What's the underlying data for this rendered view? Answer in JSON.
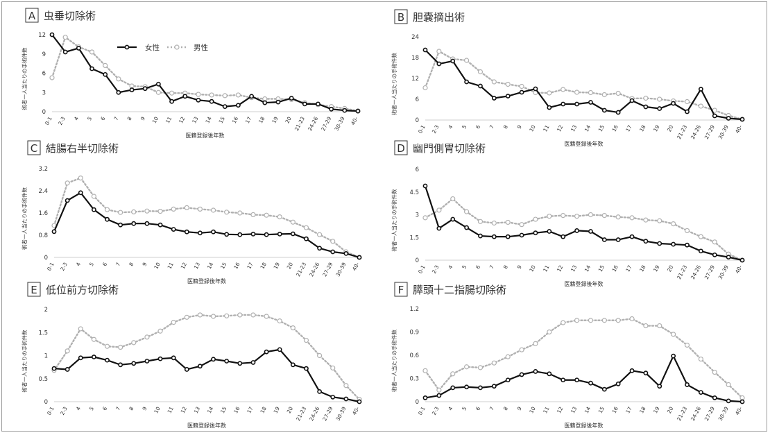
{
  "colors": {
    "female": "#111111",
    "male": "#b0b0b0",
    "axis": "#cfcfcf",
    "text": "#333333"
  },
  "legend": {
    "female": "女性",
    "male": "男性"
  },
  "chart_data": [
    {
      "type": "line",
      "letter": "A",
      "title": "虫垂切除術",
      "xlabel": "医籍登録後年数",
      "ylabel": "術者一人当たりの手術件数",
      "categories": [
        "0-1",
        "2-3",
        "4",
        "5",
        "6",
        "7",
        "8",
        "9",
        "10",
        "11",
        "12",
        "13",
        "14",
        "15",
        "16",
        "17",
        "18",
        "19",
        "20",
        "21-23",
        "24-26",
        "27-29",
        "30-39",
        "40-"
      ],
      "yticks": [
        "0",
        "3",
        "6",
        "9",
        "12"
      ],
      "ylim": [
        0,
        12
      ],
      "series": [
        {
          "name": "女性",
          "values": [
            12.0,
            9.3,
            9.9,
            6.7,
            5.8,
            3.0,
            3.4,
            3.6,
            4.3,
            1.6,
            2.4,
            1.8,
            1.6,
            0.8,
            1.0,
            2.4,
            1.4,
            1.5,
            2.1,
            1.2,
            1.2,
            0.4,
            0.2,
            0.1
          ]
        },
        {
          "name": "男性",
          "values": [
            5.3,
            11.6,
            10.1,
            9.3,
            7.2,
            5.1,
            4.0,
            3.9,
            3.0,
            2.9,
            2.9,
            2.7,
            2.6,
            2.5,
            2.6,
            2.2,
            2.0,
            2.0,
            1.9,
            1.4,
            1.1,
            0.8,
            0.5,
            0.1
          ]
        }
      ]
    },
    {
      "type": "line",
      "letter": "B",
      "title": "胆嚢摘出術",
      "xlabel": "医籍登録後年数",
      "ylabel": "術者一人当たりの手術件数",
      "categories": [
        "0-1",
        "2-3",
        "4",
        "5",
        "6",
        "7",
        "8",
        "9",
        "10",
        "11",
        "12",
        "13",
        "14",
        "15",
        "16",
        "17",
        "18",
        "19",
        "20",
        "21-23",
        "24-26",
        "27-29",
        "30-39",
        "40-"
      ],
      "yticks": [
        "0",
        "6",
        "12",
        "18",
        "24"
      ],
      "ylim": [
        0,
        24
      ],
      "series": [
        {
          "name": "女性",
          "values": [
            20.2,
            16.2,
            17.0,
            11.0,
            9.8,
            6.3,
            6.9,
            8.0,
            9.0,
            3.6,
            4.6,
            4.6,
            5.1,
            2.8,
            2.2,
            5.6,
            3.8,
            3.3,
            4.8,
            2.4,
            8.9,
            1.2,
            0.5,
            0.2
          ]
        },
        {
          "name": "男性",
          "values": [
            9.3,
            19.8,
            17.6,
            17.2,
            13.9,
            11.0,
            10.3,
            9.7,
            7.9,
            7.8,
            8.8,
            8.0,
            7.9,
            7.3,
            7.7,
            6.2,
            6.3,
            6.0,
            5.5,
            5.3,
            4.0,
            2.8,
            1.3,
            0.2
          ]
        }
      ]
    },
    {
      "type": "line",
      "letter": "C",
      "title": "結腸右半切除術",
      "xlabel": "医籍登録後年数",
      "ylabel": "術者一人当たりの手術件数",
      "categories": [
        "0-1",
        "2-3",
        "4",
        "5",
        "6",
        "7",
        "8",
        "9",
        "10",
        "11",
        "12",
        "13",
        "14",
        "15",
        "16",
        "17",
        "18",
        "19",
        "20",
        "21-23",
        "24-26",
        "27-29",
        "30-39",
        "40-"
      ],
      "yticks": [
        "0",
        "0.8",
        "1.6",
        "2.4",
        "3.2"
      ],
      "ylim": [
        0,
        3.2
      ],
      "series": [
        {
          "name": "女性",
          "values": [
            0.93,
            2.05,
            2.33,
            1.72,
            1.37,
            1.17,
            1.22,
            1.22,
            1.17,
            1.01,
            0.92,
            0.88,
            0.92,
            0.83,
            0.82,
            0.84,
            0.82,
            0.84,
            0.85,
            0.67,
            0.33,
            0.2,
            0.14,
            0.0
          ]
        },
        {
          "name": "男性",
          "values": [
            1.15,
            2.68,
            2.86,
            2.2,
            1.72,
            1.62,
            1.64,
            1.67,
            1.66,
            1.74,
            1.79,
            1.74,
            1.7,
            1.63,
            1.6,
            1.54,
            1.52,
            1.46,
            1.27,
            1.07,
            0.82,
            0.58,
            0.2,
            0.0
          ]
        }
      ]
    },
    {
      "type": "line",
      "letter": "D",
      "title": "幽門側胃切除術",
      "xlabel": "医籍登録後年数",
      "ylabel": "術者一人当たりの手術件数",
      "categories": [
        "0-1",
        "2-3",
        "4",
        "5",
        "6",
        "7",
        "8",
        "9",
        "10",
        "11",
        "12",
        "13",
        "14",
        "15",
        "16",
        "17",
        "18",
        "19",
        "20",
        "21-23",
        "24-26",
        "27-29",
        "30-39",
        "40-"
      ],
      "yticks": [
        "0",
        "1.5",
        "3",
        "4.5",
        "6"
      ],
      "ylim": [
        0,
        6
      ],
      "series": [
        {
          "name": "女性",
          "values": [
            4.9,
            2.1,
            2.7,
            2.15,
            1.6,
            1.55,
            1.55,
            1.65,
            1.8,
            1.9,
            1.55,
            1.95,
            1.9,
            1.35,
            1.35,
            1.55,
            1.25,
            1.1,
            1.05,
            1.0,
            0.6,
            0.35,
            0.2,
            0.0
          ]
        },
        {
          "name": "男性",
          "values": [
            2.8,
            3.3,
            4.05,
            3.2,
            2.55,
            2.45,
            2.5,
            2.35,
            2.7,
            2.9,
            2.95,
            2.9,
            3.0,
            2.95,
            2.85,
            2.8,
            2.65,
            2.6,
            2.4,
            1.95,
            1.55,
            1.2,
            0.4,
            0.0
          ]
        }
      ]
    },
    {
      "type": "line",
      "letter": "E",
      "title": "低位前方切除術",
      "xlabel": "医籍登録後年数",
      "ylabel": "術者一人当たりの手術件数",
      "categories": [
        "0-1",
        "2-3",
        "4",
        "5",
        "6",
        "7",
        "8",
        "9",
        "10",
        "11",
        "12",
        "13",
        "14",
        "15",
        "16",
        "17",
        "18",
        "19",
        "20",
        "21-23",
        "24-26",
        "27-29",
        "30-39",
        "40-"
      ],
      "yticks": [
        "0",
        "0.5",
        "1",
        "1.5",
        "2"
      ],
      "ylim": [
        0,
        2
      ],
      "series": [
        {
          "name": "女性",
          "values": [
            0.72,
            0.7,
            0.95,
            0.97,
            0.9,
            0.8,
            0.83,
            0.88,
            0.93,
            0.95,
            0.7,
            0.77,
            0.92,
            0.88,
            0.83,
            0.85,
            1.08,
            1.13,
            0.8,
            0.72,
            0.22,
            0.1,
            0.06,
            0.0
          ]
        },
        {
          "name": "男性",
          "values": [
            0.68,
            1.1,
            1.58,
            1.35,
            1.2,
            1.18,
            1.28,
            1.4,
            1.53,
            1.72,
            1.83,
            1.88,
            1.85,
            1.86,
            1.88,
            1.88,
            1.85,
            1.75,
            1.6,
            1.33,
            1.0,
            0.73,
            0.35,
            0.05
          ]
        }
      ]
    },
    {
      "type": "line",
      "letter": "F",
      "title": "膵頭十二指腸切除術",
      "xlabel": "医籍登録後年数",
      "ylabel": "術者一人当たりの手術件数",
      "categories": [
        "0-1",
        "2-3",
        "4",
        "5",
        "6",
        "7",
        "8",
        "9",
        "10",
        "11",
        "12",
        "13",
        "14",
        "15",
        "16",
        "17",
        "18",
        "19",
        "20",
        "21-23",
        "24-26",
        "27-29",
        "30-39",
        "40-"
      ],
      "yticks": [
        "0",
        "0.3",
        "0.6",
        "0.9",
        "1.2"
      ],
      "ylim": [
        0,
        1.2
      ],
      "series": [
        {
          "name": "女性",
          "values": [
            0.05,
            0.08,
            0.18,
            0.19,
            0.18,
            0.2,
            0.28,
            0.35,
            0.39,
            0.36,
            0.28,
            0.28,
            0.24,
            0.16,
            0.23,
            0.4,
            0.37,
            0.2,
            0.59,
            0.22,
            0.12,
            0.05,
            0.01,
            0.0
          ]
        },
        {
          "name": "男性",
          "values": [
            0.4,
            0.15,
            0.36,
            0.45,
            0.44,
            0.5,
            0.58,
            0.67,
            0.75,
            0.9,
            1.02,
            1.05,
            1.05,
            1.05,
            1.05,
            1.07,
            0.98,
            0.98,
            0.87,
            0.73,
            0.55,
            0.38,
            0.22,
            0.05
          ]
        }
      ]
    }
  ]
}
